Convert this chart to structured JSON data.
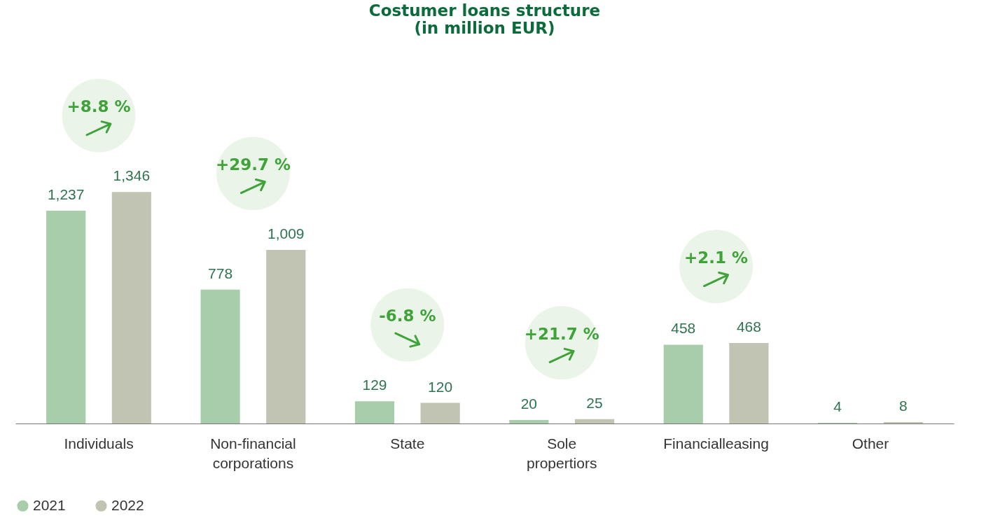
{
  "chart_data": {
    "type": "bar",
    "title": "Costumer loans structure",
    "subtitle": "(in million EUR)",
    "categories": [
      "Individuals",
      "Non-financial corporations",
      "State",
      "Sole propertiors",
      "Financialleasing",
      "Other"
    ],
    "series": [
      {
        "name": "2021",
        "color": "#a8cdab",
        "values": [
          1237,
          778,
          129,
          20,
          458,
          4
        ],
        "value_labels": [
          "1,237",
          "778",
          "129",
          "20",
          "458",
          "4"
        ]
      },
      {
        "name": "2022",
        "color": "#c2c4b3",
        "values": [
          1346,
          1009,
          120,
          25,
          468,
          8
        ],
        "value_labels": [
          "1,346",
          "1,009",
          "120",
          "25",
          "468",
          "8"
        ]
      }
    ],
    "legend": "bottom",
    "grid": false,
    "annotations": [
      "+8.8 %",
      "+29.7 %",
      "-6.8 %",
      "+21.7 %",
      "+2.1 %"
    ]
  }
}
